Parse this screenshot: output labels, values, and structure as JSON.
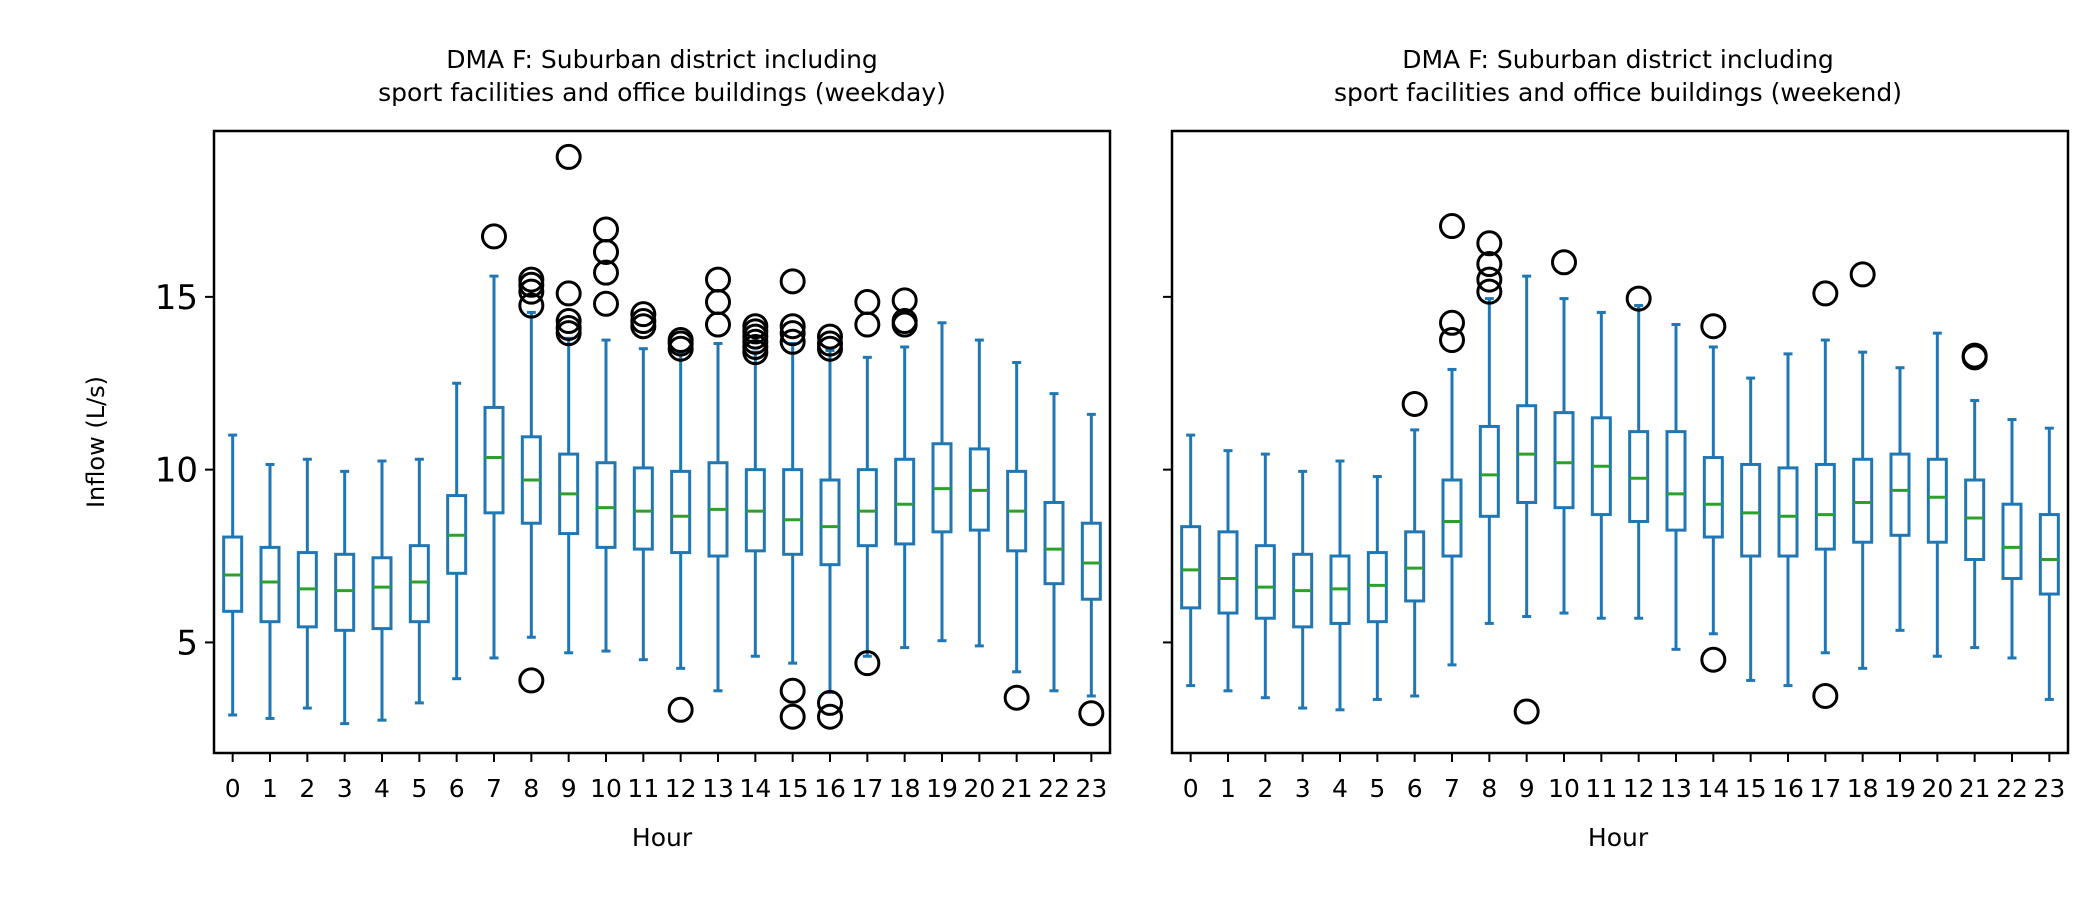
{
  "chart_data": [
    {
      "type": "box",
      "title_line1": "DMA F: Suburban district including",
      "title_line2": "sport facilities and office buildings (weekday)",
      "xlabel": "Hour",
      "ylabel": "Inflow (L/s)",
      "ylim": [
        1.8,
        19.8
      ],
      "yticks": [
        5,
        10,
        15
      ],
      "show_ytick_labels": true,
      "categories": [
        "0",
        "1",
        "2",
        "3",
        "4",
        "5",
        "6",
        "7",
        "8",
        "9",
        "10",
        "11",
        "12",
        "13",
        "14",
        "15",
        "16",
        "17",
        "18",
        "19",
        "20",
        "21",
        "22",
        "23"
      ],
      "colors": {
        "box": "#1f77b4",
        "median": "#2ca02c",
        "outlier": "#000000"
      },
      "boxes": [
        {
          "whislo": 2.9,
          "q1": 5.9,
          "med": 6.95,
          "q3": 8.05,
          "whishi": 11.0,
          "fliers": []
        },
        {
          "whislo": 2.8,
          "q1": 5.6,
          "med": 6.75,
          "q3": 7.75,
          "whishi": 10.15,
          "fliers": []
        },
        {
          "whislo": 3.1,
          "q1": 5.45,
          "med": 6.55,
          "q3": 7.6,
          "whishi": 10.3,
          "fliers": []
        },
        {
          "whislo": 2.65,
          "q1": 5.35,
          "med": 6.5,
          "q3": 7.55,
          "whishi": 9.95,
          "fliers": []
        },
        {
          "whislo": 2.75,
          "q1": 5.4,
          "med": 6.6,
          "q3": 7.45,
          "whishi": 10.25,
          "fliers": []
        },
        {
          "whislo": 3.25,
          "q1": 5.6,
          "med": 6.75,
          "q3": 7.8,
          "whishi": 10.3,
          "fliers": []
        },
        {
          "whislo": 3.95,
          "q1": 7.0,
          "med": 8.1,
          "q3": 9.25,
          "whishi": 12.5,
          "fliers": []
        },
        {
          "whislo": 4.55,
          "q1": 8.75,
          "med": 10.35,
          "q3": 11.8,
          "whishi": 15.6,
          "fliers": [
            16.75
          ]
        },
        {
          "whislo": 5.15,
          "q1": 8.45,
          "med": 9.7,
          "q3": 10.95,
          "whishi": 14.55,
          "fliers": [
            3.9,
            14.75,
            15.15,
            15.35,
            15.5
          ]
        },
        {
          "whislo": 4.7,
          "q1": 8.15,
          "med": 9.3,
          "q3": 10.45,
          "whishi": 13.8,
          "fliers": [
            13.95,
            14.1,
            14.3,
            15.1,
            19.05
          ]
        },
        {
          "whislo": 4.75,
          "q1": 7.75,
          "med": 8.9,
          "q3": 10.2,
          "whishi": 13.75,
          "fliers": [
            14.8,
            15.7,
            16.3,
            16.95
          ]
        },
        {
          "whislo": 4.5,
          "q1": 7.7,
          "med": 8.8,
          "q3": 10.05,
          "whishi": 13.5,
          "fliers": [
            14.15,
            14.3,
            14.5
          ]
        },
        {
          "whislo": 4.25,
          "q1": 7.6,
          "med": 8.65,
          "q3": 9.95,
          "whishi": 13.35,
          "fliers": [
            3.05,
            13.5,
            13.65,
            13.75
          ]
        },
        {
          "whislo": 3.6,
          "q1": 7.5,
          "med": 8.85,
          "q3": 10.2,
          "whishi": 13.65,
          "fliers": [
            14.2,
            14.85,
            15.5
          ]
        },
        {
          "whislo": 4.6,
          "q1": 7.65,
          "med": 8.8,
          "q3": 10.0,
          "whishi": 13.4,
          "fliers": [
            13.4,
            13.55,
            13.7,
            13.85,
            14.0,
            14.15
          ]
        },
        {
          "whislo": 4.4,
          "q1": 7.55,
          "med": 8.55,
          "q3": 10.0,
          "whishi": 13.65,
          "fliers": [
            2.85,
            3.6,
            13.7,
            13.95,
            14.15,
            15.45
          ]
        },
        {
          "whislo": 3.55,
          "q1": 7.25,
          "med": 8.35,
          "q3": 9.7,
          "whishi": 13.45,
          "fliers": [
            2.85,
            3.25,
            13.5,
            13.65,
            13.85
          ]
        },
        {
          "whislo": 4.6,
          "q1": 7.8,
          "med": 8.8,
          "q3": 10.0,
          "whishi": 13.25,
          "fliers": [
            4.4,
            14.2,
            14.85
          ]
        },
        {
          "whislo": 4.85,
          "q1": 7.85,
          "med": 9.0,
          "q3": 10.3,
          "whishi": 13.55,
          "fliers": [
            14.2,
            14.3,
            14.9
          ]
        },
        {
          "whislo": 5.05,
          "q1": 8.2,
          "med": 9.45,
          "q3": 10.75,
          "whishi": 14.25,
          "fliers": []
        },
        {
          "whislo": 4.9,
          "q1": 8.25,
          "med": 9.4,
          "q3": 10.6,
          "whishi": 13.75,
          "fliers": []
        },
        {
          "whislo": 4.15,
          "q1": 7.65,
          "med": 8.8,
          "q3": 9.95,
          "whishi": 13.1,
          "fliers": [
            3.4
          ]
        },
        {
          "whislo": 3.6,
          "q1": 6.7,
          "med": 7.7,
          "q3": 9.05,
          "whishi": 12.2,
          "fliers": []
        },
        {
          "whislo": 3.45,
          "q1": 6.25,
          "med": 7.3,
          "q3": 8.45,
          "whishi": 11.6,
          "fliers": [
            2.95
          ]
        }
      ]
    },
    {
      "type": "box",
      "title_line1": "DMA F: Suburban district including",
      "title_line2": "sport facilities and office buildings (weekend)",
      "xlabel": "Hour",
      "ylabel": "",
      "ylim": [
        1.8,
        19.8
      ],
      "yticks": [
        5,
        10,
        15
      ],
      "show_ytick_labels": false,
      "categories": [
        "0",
        "1",
        "2",
        "3",
        "4",
        "5",
        "6",
        "7",
        "8",
        "9",
        "10",
        "11",
        "12",
        "13",
        "14",
        "15",
        "16",
        "17",
        "18",
        "19",
        "20",
        "21",
        "22",
        "23"
      ],
      "colors": {
        "box": "#1f77b4",
        "median": "#2ca02c",
        "outlier": "#000000"
      },
      "boxes": [
        {
          "whislo": 3.75,
          "q1": 6.0,
          "med": 7.1,
          "q3": 8.35,
          "whishi": 11.0,
          "fliers": []
        },
        {
          "whislo": 3.6,
          "q1": 5.85,
          "med": 6.85,
          "q3": 8.2,
          "whishi": 10.55,
          "fliers": []
        },
        {
          "whislo": 3.4,
          "q1": 5.7,
          "med": 6.6,
          "q3": 7.8,
          "whishi": 10.45,
          "fliers": []
        },
        {
          "whislo": 3.1,
          "q1": 5.45,
          "med": 6.5,
          "q3": 7.55,
          "whishi": 9.95,
          "fliers": []
        },
        {
          "whislo": 3.05,
          "q1": 5.55,
          "med": 6.55,
          "q3": 7.5,
          "whishi": 10.25,
          "fliers": []
        },
        {
          "whislo": 3.35,
          "q1": 5.6,
          "med": 6.65,
          "q3": 7.6,
          "whishi": 9.8,
          "fliers": []
        },
        {
          "whislo": 3.45,
          "q1": 6.2,
          "med": 7.15,
          "q3": 8.2,
          "whishi": 11.15,
          "fliers": [
            11.9
          ]
        },
        {
          "whislo": 4.35,
          "q1": 7.5,
          "med": 8.5,
          "q3": 9.7,
          "whishi": 12.9,
          "fliers": [
            13.75,
            14.25,
            17.05
          ]
        },
        {
          "whislo": 5.55,
          "q1": 8.65,
          "med": 9.85,
          "q3": 11.25,
          "whishi": 14.95,
          "fliers": [
            15.15,
            15.5,
            15.95,
            16.55
          ]
        },
        {
          "whislo": 5.75,
          "q1": 9.05,
          "med": 10.45,
          "q3": 11.85,
          "whishi": 15.6,
          "fliers": [
            3.0
          ]
        },
        {
          "whislo": 5.85,
          "q1": 8.9,
          "med": 10.2,
          "q3": 11.65,
          "whishi": 14.95,
          "fliers": [
            16.0
          ]
        },
        {
          "whislo": 5.7,
          "q1": 8.7,
          "med": 10.1,
          "q3": 11.5,
          "whishi": 14.55,
          "fliers": []
        },
        {
          "whislo": 5.7,
          "q1": 8.5,
          "med": 9.75,
          "q3": 11.1,
          "whishi": 14.75,
          "fliers": [
            14.95
          ]
        },
        {
          "whislo": 4.8,
          "q1": 8.25,
          "med": 9.3,
          "q3": 11.1,
          "whishi": 14.2,
          "fliers": []
        },
        {
          "whislo": 5.25,
          "q1": 8.05,
          "med": 9.0,
          "q3": 10.35,
          "whishi": 13.55,
          "fliers": [
            4.5,
            14.15
          ]
        },
        {
          "whislo": 3.9,
          "q1": 7.5,
          "med": 8.75,
          "q3": 10.15,
          "whishi": 12.65,
          "fliers": []
        },
        {
          "whislo": 3.75,
          "q1": 7.5,
          "med": 8.65,
          "q3": 10.05,
          "whishi": 13.35,
          "fliers": []
        },
        {
          "whislo": 4.7,
          "q1": 7.7,
          "med": 8.7,
          "q3": 10.15,
          "whishi": 13.75,
          "fliers": [
            3.45,
            15.1
          ]
        },
        {
          "whislo": 4.25,
          "q1": 7.9,
          "med": 9.05,
          "q3": 10.3,
          "whishi": 13.4,
          "fliers": [
            15.65
          ]
        },
        {
          "whislo": 5.35,
          "q1": 8.1,
          "med": 9.4,
          "q3": 10.45,
          "whishi": 12.95,
          "fliers": []
        },
        {
          "whislo": 4.6,
          "q1": 7.9,
          "med": 9.2,
          "q3": 10.3,
          "whishi": 13.95,
          "fliers": []
        },
        {
          "whislo": 4.85,
          "q1": 7.4,
          "med": 8.6,
          "q3": 9.7,
          "whishi": 12.0,
          "fliers": [
            13.25,
            13.3
          ]
        },
        {
          "whislo": 4.55,
          "q1": 6.85,
          "med": 7.75,
          "q3": 9.0,
          "whishi": 11.45,
          "fliers": []
        },
        {
          "whislo": 3.35,
          "q1": 6.4,
          "med": 7.4,
          "q3": 8.7,
          "whishi": 11.2,
          "fliers": []
        }
      ]
    }
  ]
}
